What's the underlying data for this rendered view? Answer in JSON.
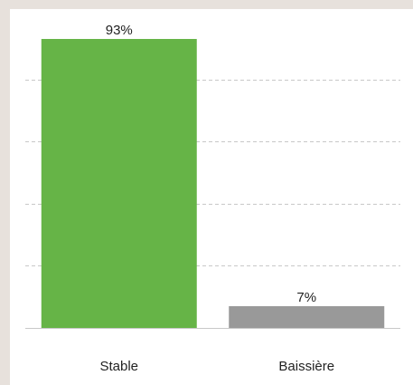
{
  "chart_data": {
    "type": "bar",
    "categories": [
      "Stable",
      "Baissière"
    ],
    "values": [
      93,
      7
    ],
    "value_labels": [
      "93%",
      "7%"
    ],
    "colors": [
      "#66b447",
      "#999999"
    ],
    "ylim": [
      0,
      100
    ],
    "grid": true,
    "title": "",
    "xlabel": "",
    "ylabel": ""
  }
}
